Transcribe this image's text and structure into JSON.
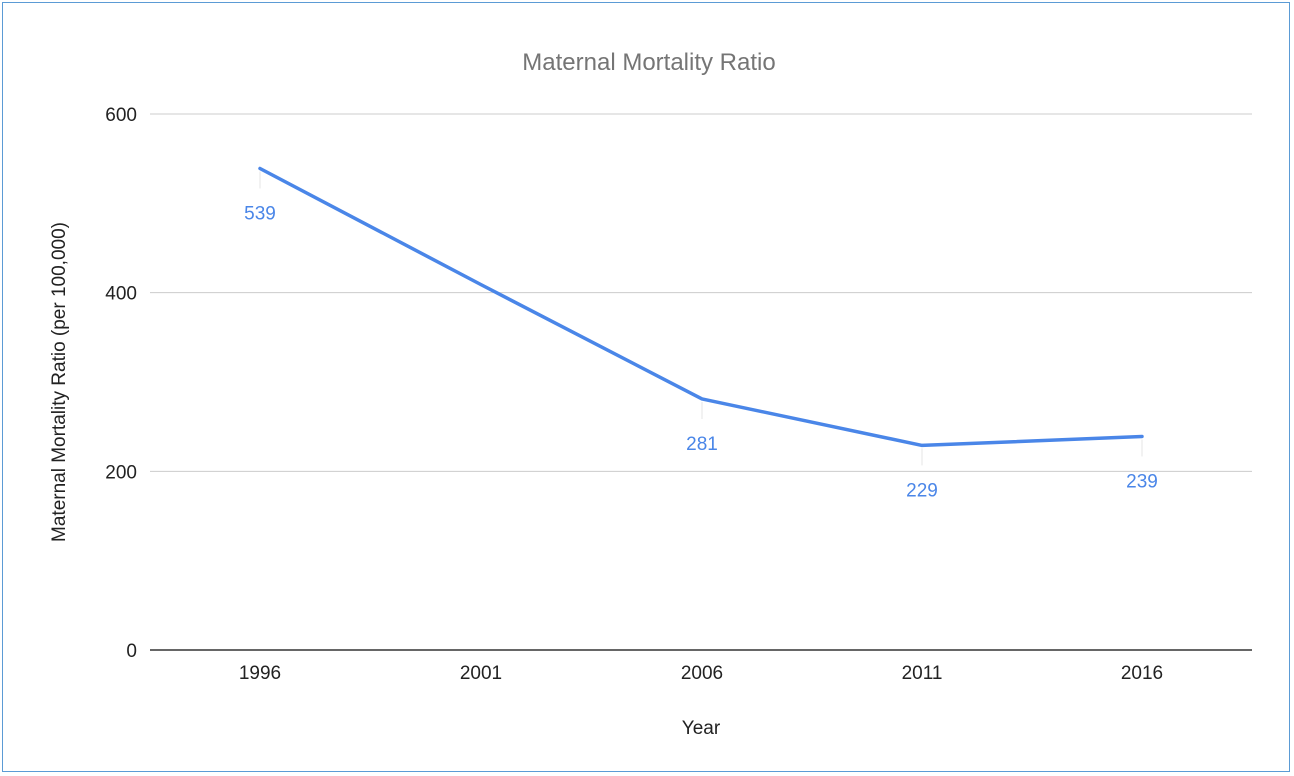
{
  "chart_data": {
    "type": "line",
    "title": "Maternal Mortality Ratio",
    "xlabel": "Year",
    "ylabel": "Maternal Mortality Ratio (per 100,000)",
    "categories": [
      "1996",
      "2001",
      "2006",
      "2011",
      "2016"
    ],
    "series": [
      {
        "values": [
          539,
          409,
          281,
          229,
          239
        ],
        "data_labels": [
          "539",
          null,
          "281",
          "229",
          "239"
        ],
        "color": "#4a86e8"
      }
    ],
    "ylim": [
      0,
      600
    ],
    "yticks": [
      "0",
      "200",
      "400",
      "600"
    ],
    "grid": true,
    "legend": "none"
  },
  "colors": {
    "frame_border": "#5b9bd5",
    "gridline": "#cccccc",
    "axis_line": "#333333",
    "series": "#4a86e8"
  }
}
